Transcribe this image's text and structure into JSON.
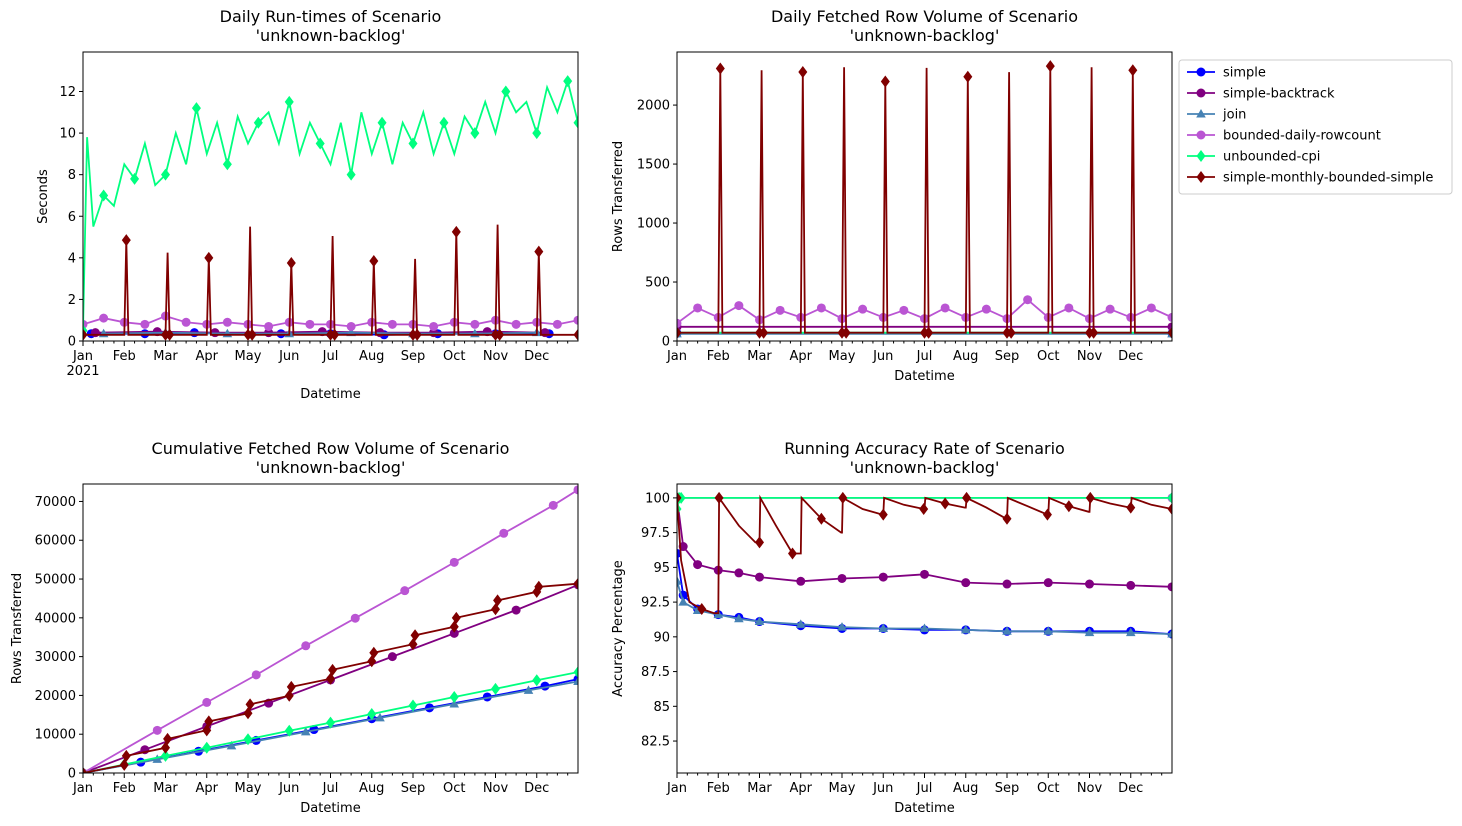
{
  "series_styles": [
    {
      "name": "simple",
      "color": "#0000ff",
      "marker": "circle"
    },
    {
      "name": "simple-backtrack",
      "color": "#800080",
      "marker": "circle"
    },
    {
      "name": "join",
      "color": "#4682b4",
      "marker": "triangle"
    },
    {
      "name": "bounded-daily-rowcount",
      "color": "#ba55d3",
      "marker": "circle"
    },
    {
      "name": "unbounded-cpi",
      "color": "#00ff7f",
      "marker": "diamond"
    },
    {
      "name": "simple-monthly-bounded-simple",
      "color": "#800000",
      "marker": "diamond"
    }
  ],
  "chart_data": [
    {
      "type": "line",
      "title": "Daily Run-times of Scenario\n'unknown-backlog'",
      "xlabel": "Datetime",
      "ylabel": "Seconds",
      "x_ticks": [
        "Jan",
        "Feb",
        "Mar",
        "Apr",
        "May",
        "Jun",
        "Jul",
        "Aug",
        "Sep",
        "Oct",
        "Nov",
        "Dec"
      ],
      "x_year_label": "2021",
      "xlim": [
        0,
        12
      ],
      "ylim": [
        0,
        13.9
      ],
      "y_ticks": [
        0,
        2,
        4,
        6,
        8,
        10,
        12
      ],
      "series": [
        {
          "name": "simple",
          "x": [
            0.2,
            1.5,
            2.7,
            4.8,
            6.0,
            7.3,
            8.6,
            10.0,
            11.3
          ],
          "y": [
            0.35,
            0.35,
            0.4,
            0.35,
            0.35,
            0.3,
            0.35,
            0.35,
            0.35
          ]
        },
        {
          "name": "simple-backtrack",
          "x": [
            0.3,
            1.8,
            3.2,
            4.5,
            5.8,
            7.2,
            8.5,
            9.8,
            11.2
          ],
          "y": [
            0.4,
            0.45,
            0.4,
            0.4,
            0.45,
            0.4,
            0.4,
            0.45,
            0.4
          ]
        },
        {
          "name": "join",
          "x": [
            0.5,
            2.0,
            3.5,
            5.0,
            6.5,
            8.0,
            9.5,
            11.0
          ],
          "y": [
            0.35,
            0.4,
            0.35,
            0.35,
            0.4,
            0.35,
            0.35,
            0.4
          ]
        },
        {
          "name": "bounded-daily-rowcount",
          "x": [
            0,
            0.5,
            1.0,
            1.5,
            2.0,
            2.5,
            3.0,
            3.5,
            4.0,
            4.5,
            5.0,
            5.5,
            6.0,
            6.5,
            7.0,
            7.5,
            8.0,
            8.5,
            9.0,
            9.5,
            10.0,
            10.5,
            11.0,
            11.5,
            12.0
          ],
          "y": [
            0.8,
            1.1,
            0.9,
            0.8,
            1.2,
            0.9,
            0.8,
            0.9,
            0.8,
            0.7,
            0.9,
            0.8,
            0.8,
            0.7,
            0.9,
            0.8,
            0.8,
            0.7,
            0.9,
            0.8,
            1.0,
            0.8,
            0.9,
            0.8,
            1.0
          ]
        },
        {
          "name": "unbounded-cpi",
          "x": [
            0,
            0.1,
            0.25,
            0.5,
            0.75,
            1.0,
            1.25,
            1.5,
            1.75,
            2.0,
            2.25,
            2.5,
            2.75,
            3.0,
            3.25,
            3.5,
            3.75,
            4.0,
            4.25,
            4.5,
            4.75,
            5.0,
            5.25,
            5.5,
            5.75,
            6.0,
            6.25,
            6.5,
            6.75,
            7.0,
            7.25,
            7.5,
            7.75,
            8.0,
            8.25,
            8.5,
            8.75,
            9.0,
            9.25,
            9.5,
            9.75,
            10.0,
            10.25,
            10.5,
            10.75,
            11.0,
            11.25,
            11.5,
            11.75,
            12.0
          ],
          "y": [
            0.5,
            9.8,
            5.5,
            7.0,
            6.5,
            8.5,
            7.8,
            9.5,
            7.5,
            8.0,
            10.0,
            8.5,
            11.2,
            9.0,
            10.5,
            8.5,
            10.8,
            9.5,
            10.5,
            11.0,
            9.5,
            11.5,
            9.0,
            10.5,
            9.5,
            8.5,
            10.5,
            8.0,
            11.0,
            9.0,
            10.5,
            8.5,
            10.5,
            9.5,
            11.0,
            9.0,
            10.5,
            9.0,
            10.8,
            10.0,
            11.5,
            10.0,
            12.0,
            11.0,
            11.5,
            10.0,
            12.2,
            11.0,
            12.5,
            10.5
          ]
        },
        {
          "name": "simple-monthly-bounded-simple",
          "x": [
            0,
            1.0,
            1.05,
            1.1,
            2.0,
            2.05,
            2.1,
            3.0,
            3.05,
            3.1,
            4.0,
            4.05,
            4.1,
            5.0,
            5.05,
            5.1,
            6.0,
            6.05,
            6.1,
            7.0,
            7.05,
            7.1,
            8.0,
            8.05,
            8.1,
            9.0,
            9.05,
            9.1,
            10.0,
            10.05,
            10.1,
            11.0,
            11.05,
            11.1,
            12.0
          ],
          "y": [
            0.3,
            0.3,
            4.85,
            0.3,
            0.3,
            4.25,
            0.3,
            0.3,
            4.0,
            0.3,
            0.3,
            5.5,
            0.3,
            0.3,
            3.75,
            0.3,
            0.3,
            5.05,
            0.3,
            0.3,
            3.85,
            0.3,
            0.3,
            3.95,
            0.3,
            0.3,
            5.25,
            0.3,
            0.3,
            5.6,
            0.3,
            0.3,
            4.3,
            0.3,
            0.3
          ]
        }
      ]
    },
    {
      "type": "line",
      "title": "Daily Fetched Row Volume of Scenario\n'unknown-backlog'",
      "xlabel": "Datetime",
      "ylabel": "Rows Transferred",
      "x_ticks": [
        "Jan",
        "Feb",
        "Mar",
        "Apr",
        "May",
        "Jun",
        "Jul",
        "Aug",
        "Sep",
        "Oct",
        "Nov",
        "Dec"
      ],
      "xlim": [
        0,
        12
      ],
      "ylim": [
        0,
        2450
      ],
      "y_ticks": [
        0,
        500,
        1000,
        1500,
        2000
      ],
      "legend": "outside-upper-right",
      "series": [
        {
          "name": "simple",
          "x": [
            0,
            12
          ],
          "y": [
            65,
            65
          ]
        },
        {
          "name": "simple-backtrack",
          "x": [
            0,
            12
          ],
          "y": [
            120,
            120
          ]
        },
        {
          "name": "join",
          "x": [
            0,
            12
          ],
          "y": [
            60,
            60
          ]
        },
        {
          "name": "bounded-daily-rowcount",
          "x": [
            0,
            0.5,
            1.0,
            1.5,
            2.0,
            2.5,
            3.0,
            3.5,
            4.0,
            4.5,
            5.0,
            5.5,
            6.0,
            6.5,
            7.0,
            7.5,
            8.0,
            8.5,
            9.0,
            9.5,
            10.0,
            10.5,
            11.0,
            11.5,
            12.0
          ],
          "y": [
            150,
            280,
            200,
            300,
            180,
            260,
            200,
            280,
            190,
            270,
            200,
            260,
            190,
            280,
            200,
            270,
            190,
            350,
            200,
            280,
            190,
            270,
            200,
            280,
            200
          ]
        },
        {
          "name": "unbounded-cpi",
          "x": [
            0,
            12
          ],
          "y": [
            70,
            70
          ]
        },
        {
          "name": "simple-monthly-bounded-simple",
          "x": [
            0,
            1.0,
            1.05,
            1.1,
            2.0,
            2.05,
            2.1,
            3.0,
            3.05,
            3.1,
            4.0,
            4.05,
            4.1,
            5.0,
            5.05,
            5.1,
            6.0,
            6.05,
            6.1,
            7.0,
            7.05,
            7.1,
            8.0,
            8.05,
            8.1,
            9.0,
            9.05,
            9.1,
            10.0,
            10.05,
            10.1,
            11.0,
            11.05,
            11.1,
            12.0
          ],
          "y": [
            70,
            70,
            2310,
            70,
            70,
            2295,
            70,
            70,
            2280,
            70,
            70,
            2320,
            70,
            70,
            2200,
            70,
            70,
            2315,
            70,
            70,
            2240,
            70,
            70,
            2280,
            70,
            70,
            2330,
            70,
            70,
            2320,
            70,
            70,
            2295,
            70,
            70
          ]
        }
      ]
    },
    {
      "type": "line",
      "title": "Cumulative Fetched Row Volume of Scenario\n'unknown-backlog'",
      "xlabel": "Datetime",
      "ylabel": "Rows Transferred",
      "x_ticks": [
        "Jan",
        "Feb",
        "Mar",
        "Apr",
        "May",
        "Jun",
        "Jul",
        "Aug",
        "Sep",
        "Oct",
        "Nov",
        "Dec"
      ],
      "xlim": [
        0,
        12
      ],
      "ylim": [
        0,
        74500
      ],
      "y_ticks": [
        0,
        10000,
        20000,
        30000,
        40000,
        50000,
        60000,
        70000
      ],
      "series": [
        {
          "name": "simple",
          "x": [
            0,
            1.4,
            2.8,
            4.2,
            5.6,
            7.0,
            8.4,
            9.8,
            11.2,
            12.0
          ],
          "y": [
            0,
            2800,
            5600,
            8400,
            11200,
            14000,
            16800,
            19600,
            22400,
            24200
          ]
        },
        {
          "name": "simple-backtrack",
          "x": [
            0,
            1.5,
            3.0,
            4.5,
            6.0,
            7.5,
            9.0,
            10.5,
            12.0
          ],
          "y": [
            0,
            6000,
            12000,
            18000,
            24000,
            30000,
            36000,
            42000,
            48500
          ]
        },
        {
          "name": "join",
          "x": [
            0,
            1.8,
            3.6,
            5.4,
            7.2,
            9.0,
            10.8,
            12.0
          ],
          "y": [
            0,
            3500,
            7000,
            10600,
            14200,
            17800,
            21300,
            23600
          ]
        },
        {
          "name": "bounded-daily-rowcount",
          "x": [
            0,
            1.8,
            3.0,
            4.2,
            5.4,
            6.6,
            7.8,
            9.0,
            10.2,
            11.4,
            12.0
          ],
          "y": [
            0,
            11000,
            18200,
            25300,
            32800,
            39900,
            47000,
            54300,
            61800,
            69000,
            73000
          ]
        },
        {
          "name": "unbounded-cpi",
          "x": [
            0,
            1.0,
            2.0,
            3.0,
            4.0,
            5.0,
            6.0,
            7.0,
            8.0,
            9.0,
            10.0,
            11.0,
            12.0
          ],
          "y": [
            0,
            2200,
            4400,
            6500,
            8700,
            10900,
            13000,
            15200,
            17400,
            19600,
            21700,
            23900,
            26000
          ]
        },
        {
          "name": "simple-monthly-bounded-simple",
          "x": [
            0,
            1.0,
            1.05,
            2.0,
            2.05,
            3.0,
            3.05,
            4.0,
            4.05,
            5.0,
            5.05,
            6.0,
            6.05,
            7.0,
            7.05,
            8.0,
            8.05,
            9.0,
            9.05,
            10.0,
            10.05,
            11.0,
            11.05,
            12.0
          ],
          "y": [
            0,
            2100,
            4400,
            6500,
            8800,
            11000,
            13300,
            15400,
            17700,
            19900,
            22200,
            24300,
            26600,
            28800,
            31000,
            33200,
            35500,
            37700,
            40000,
            42200,
            44500,
            46700,
            48000,
            48800
          ]
        }
      ]
    },
    {
      "type": "line",
      "title": "Running Accuracy Rate of Scenario\n'unknown-backlog'",
      "xlabel": "Datetime",
      "ylabel": "Accuracy Percentage",
      "x_ticks": [
        "Jan",
        "Feb",
        "Mar",
        "Apr",
        "May",
        "Jun",
        "Jul",
        "Aug",
        "Sep",
        "Oct",
        "Nov",
        "Dec"
      ],
      "xlim": [
        0,
        12
      ],
      "ylim": [
        80.2,
        101.0
      ],
      "y_ticks": [
        82.5,
        85.0,
        87.5,
        90.0,
        92.5,
        95.0,
        97.5,
        100.0
      ],
      "series": [
        {
          "name": "simple",
          "x": [
            0,
            0.15,
            0.5,
            1.0,
            1.5,
            2.0,
            3.0,
            4.0,
            5.0,
            6.0,
            7.0,
            8.0,
            9.0,
            10.0,
            11.0,
            12.0
          ],
          "y": [
            96.0,
            93.0,
            92.0,
            91.6,
            91.4,
            91.1,
            90.8,
            90.6,
            90.6,
            90.5,
            90.5,
            90.4,
            90.4,
            90.4,
            90.4,
            90.2
          ]
        },
        {
          "name": "simple-backtrack",
          "x": [
            0,
            0.15,
            0.5,
            1.0,
            1.5,
            2.0,
            3.0,
            4.0,
            5.0,
            6.0,
            7.0,
            8.0,
            9.0,
            10.0,
            11.0,
            12.0
          ],
          "y": [
            100.0,
            96.5,
            95.2,
            94.8,
            94.6,
            94.3,
            94.0,
            94.2,
            94.3,
            94.5,
            93.9,
            93.8,
            93.9,
            93.8,
            93.7,
            93.6
          ]
        },
        {
          "name": "join",
          "x": [
            0,
            0.15,
            0.5,
            1.0,
            1.5,
            2.0,
            3.0,
            4.0,
            5.0,
            6.0,
            7.0,
            8.0,
            9.0,
            10.0,
            11.0,
            12.0
          ],
          "y": [
            94.0,
            92.5,
            91.9,
            91.6,
            91.3,
            91.1,
            90.9,
            90.7,
            90.6,
            90.6,
            90.5,
            90.4,
            90.4,
            90.3,
            90.3,
            90.2
          ]
        },
        {
          "name": "bounded-daily-rowcount",
          "x": [
            0,
            12
          ],
          "y": [
            100.0,
            100.0
          ]
        },
        {
          "name": "unbounded-cpi",
          "x": [
            0,
            0.05,
            0.1,
            12.0
          ],
          "y": [
            99.2,
            100.0,
            100.0,
            100.0
          ]
        },
        {
          "name": "simple-monthly-bounded-simple",
          "x": [
            0,
            0.1,
            0.3,
            0.6,
            0.9,
            1.0,
            1.02,
            1.5,
            1.9,
            2.0,
            2.02,
            2.4,
            2.8,
            3.0,
            3.02,
            3.5,
            3.98,
            4.0,
            4.02,
            4.5,
            4.98,
            5.0,
            5.02,
            5.5,
            5.98,
            6.0,
            6.02,
            6.5,
            6.98,
            7.0,
            7.02,
            7.5,
            7.98,
            8.0,
            8.02,
            8.5,
            8.98,
            9.0,
            9.02,
            9.5,
            9.98,
            10.0,
            10.02,
            10.5,
            10.98,
            11.0,
            11.02,
            11.5,
            12.0
          ],
          "y": [
            100.0,
            95.5,
            92.5,
            92.0,
            91.7,
            91.7,
            100.0,
            98.0,
            96.8,
            96.8,
            100.0,
            98.0,
            96.0,
            96.0,
            100.0,
            98.5,
            97.5,
            97.5,
            100.0,
            99.2,
            98.8,
            98.8,
            100.0,
            99.5,
            99.2,
            99.2,
            100.0,
            99.6,
            99.3,
            99.3,
            100.0,
            99.3,
            98.5,
            98.5,
            100.0,
            99.4,
            98.8,
            98.8,
            100.0,
            99.4,
            99.0,
            99.0,
            100.0,
            99.6,
            99.3,
            99.3,
            100.0,
            99.5,
            99.2
          ]
        }
      ]
    }
  ]
}
